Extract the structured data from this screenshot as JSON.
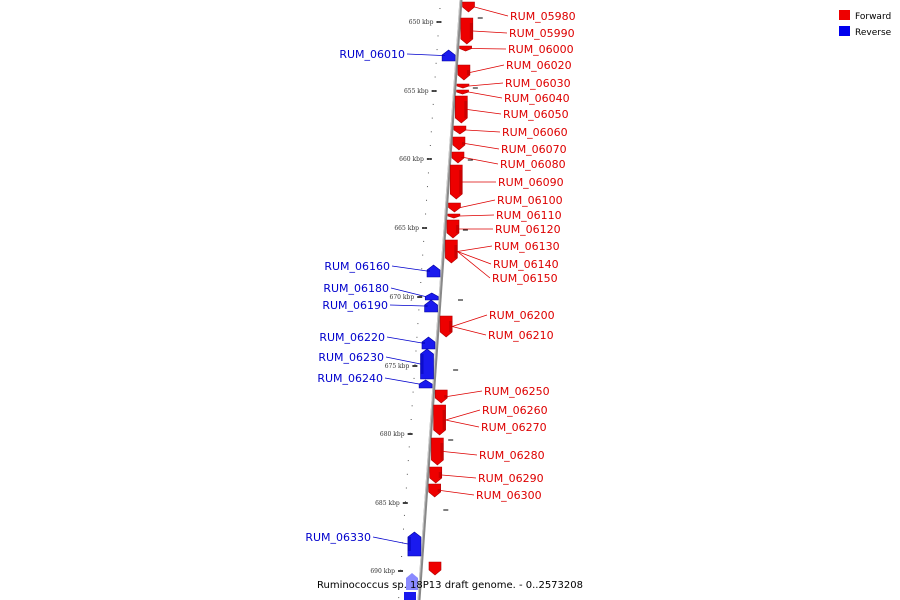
{
  "caption": "Ruminococcus sp. 18P13 draft genome. - 0..2573208",
  "legend": [
    {
      "label": "Forward",
      "color": "#ee0000"
    },
    {
      "label": "Reverse",
      "color": "#0000ee"
    }
  ],
  "colors": {
    "forward": "#ee0000",
    "reverse": "#1a1aee",
    "reverse_light": "#8a8aff",
    "backbone": "#888888"
  },
  "kbp_ticks": [
    "650 kbp",
    "655 kbp",
    "660 kbp",
    "665 kbp",
    "670 kbp",
    "675 kbp",
    "680 kbp",
    "685 kbp",
    "690 kbp"
  ],
  "genes": [
    {
      "name": "RUM_05980",
      "strand": "forward"
    },
    {
      "name": "RUM_05990",
      "strand": "forward"
    },
    {
      "name": "RUM_06000",
      "strand": "forward"
    },
    {
      "name": "RUM_06010",
      "strand": "reverse"
    },
    {
      "name": "RUM_06020",
      "strand": "forward"
    },
    {
      "name": "RUM_06030",
      "strand": "forward"
    },
    {
      "name": "RUM_06040",
      "strand": "forward"
    },
    {
      "name": "RUM_06050",
      "strand": "forward"
    },
    {
      "name": "RUM_06060",
      "strand": "forward"
    },
    {
      "name": "RUM_06070",
      "strand": "forward"
    },
    {
      "name": "RUM_06080",
      "strand": "forward"
    },
    {
      "name": "RUM_06090",
      "strand": "forward"
    },
    {
      "name": "RUM_06100",
      "strand": "forward"
    },
    {
      "name": "RUM_06110",
      "strand": "forward"
    },
    {
      "name": "RUM_06120",
      "strand": "forward"
    },
    {
      "name": "RUM_06130",
      "strand": "forward"
    },
    {
      "name": "RUM_06140",
      "strand": "forward"
    },
    {
      "name": "RUM_06150",
      "strand": "forward"
    },
    {
      "name": "RUM_06160",
      "strand": "reverse"
    },
    {
      "name": "RUM_06180",
      "strand": "reverse"
    },
    {
      "name": "RUM_06190",
      "strand": "reverse"
    },
    {
      "name": "RUM_06200",
      "strand": "forward"
    },
    {
      "name": "RUM_06210",
      "strand": "forward"
    },
    {
      "name": "RUM_06220",
      "strand": "reverse"
    },
    {
      "name": "RUM_06230",
      "strand": "reverse"
    },
    {
      "name": "RUM_06240",
      "strand": "reverse"
    },
    {
      "name": "RUM_06250",
      "strand": "forward"
    },
    {
      "name": "RUM_06260",
      "strand": "forward"
    },
    {
      "name": "RUM_06270",
      "strand": "forward"
    },
    {
      "name": "RUM_06280",
      "strand": "forward"
    },
    {
      "name": "RUM_06290",
      "strand": "forward"
    },
    {
      "name": "RUM_06300",
      "strand": "forward"
    },
    {
      "name": "RUM_06330",
      "strand": "reverse"
    }
  ]
}
